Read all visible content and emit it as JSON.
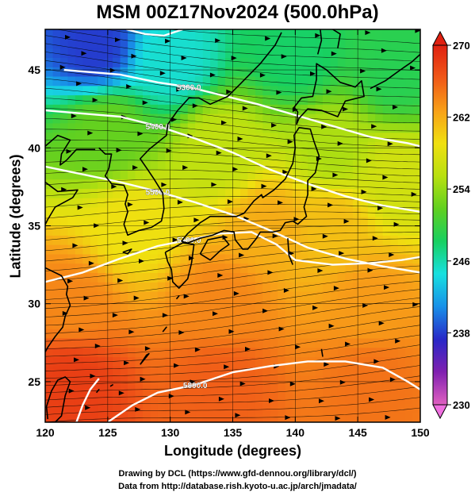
{
  "chart_data": {
    "type": "heatmap",
    "title": "MSM 00Z17Nov2024 (500.0hPa)",
    "xlabel": "Longitude (degrees)",
    "ylabel": "Latitude  (degrees)",
    "xlim": [
      120,
      150
    ],
    "ylim": [
      22.4,
      47.6
    ],
    "x_ticks": [
      "120",
      "125",
      "130",
      "135",
      "140",
      "145",
      "150"
    ],
    "y_ticks": [
      "25",
      "30",
      "35",
      "40",
      "45"
    ],
    "grid": true,
    "fill_variable": "temperature",
    "colorbar": {
      "min": 230,
      "max": 270,
      "ticks": [
        "230",
        "238",
        "246",
        "254",
        "262",
        "270"
      ],
      "colors": [
        "#e060c0",
        "#8020b0",
        "#2828c8",
        "#1890e8",
        "#18e0e0",
        "#18d060",
        "#60d020",
        "#b8e010",
        "#f0e010",
        "#f8a018",
        "#f05818",
        "#e02010"
      ]
    },
    "field_anchors": [
      {
        "lon": 124,
        "lat": 46.5,
        "value": 238
      },
      {
        "lon": 130,
        "lat": 45.5,
        "value": 245
      },
      {
        "lon": 140,
        "lat": 46,
        "value": 248
      },
      {
        "lon": 148,
        "lat": 45,
        "value": 249
      },
      {
        "lon": 125,
        "lat": 41,
        "value": 252
      },
      {
        "lon": 134,
        "lat": 40,
        "value": 256
      },
      {
        "lon": 143,
        "lat": 40,
        "value": 255
      },
      {
        "lon": 148,
        "lat": 38,
        "value": 257
      },
      {
        "lon": 127,
        "lat": 35,
        "value": 259
      },
      {
        "lon": 138,
        "lat": 35,
        "value": 262
      },
      {
        "lon": 143,
        "lat": 35,
        "value": 261
      },
      {
        "lon": 122,
        "lat": 30,
        "value": 264
      },
      {
        "lon": 134,
        "lat": 30,
        "value": 264
      },
      {
        "lon": 146,
        "lat": 30,
        "value": 263
      },
      {
        "lon": 122,
        "lat": 25,
        "value": 268
      },
      {
        "lon": 134,
        "lat": 25,
        "value": 266
      },
      {
        "lon": 146,
        "lat": 25,
        "value": 265
      }
    ],
    "contours": [
      {
        "label": "5300.0",
        "points": [
          [
            121.5,
            45
          ],
          [
            126,
            44.7
          ],
          [
            129,
            44.2
          ],
          [
            131.5,
            43.9
          ],
          [
            134,
            43.4
          ],
          [
            137,
            42.8
          ],
          [
            140,
            42.1
          ],
          [
            143,
            41.4
          ],
          [
            146,
            40.7
          ],
          [
            149,
            40.3
          ],
          [
            150,
            40.1
          ]
        ]
      },
      {
        "label": "5400.0",
        "points": [
          [
            120,
            42.4
          ],
          [
            123,
            42.2
          ],
          [
            126,
            42
          ],
          [
            129,
            41.4
          ],
          [
            132,
            40.6
          ],
          [
            135,
            39.7
          ],
          [
            138,
            38.6
          ],
          [
            141,
            37.7
          ],
          [
            144,
            36.9
          ],
          [
            147,
            36.3
          ],
          [
            150,
            35.9
          ]
        ]
      },
      {
        "label": "5500.0",
        "points": [
          [
            120,
            38.8
          ],
          [
            123,
            38.3
          ],
          [
            126,
            37.8
          ],
          [
            129,
            37.2
          ],
          [
            132,
            36.5
          ],
          [
            135,
            35.7
          ],
          [
            138,
            34.7
          ],
          [
            141,
            33.6
          ],
          [
            144,
            32.9
          ],
          [
            147,
            32.4
          ],
          [
            150,
            32
          ]
        ]
      },
      {
        "label": "5700.0",
        "points": [
          [
            120,
            31.4
          ],
          [
            123,
            32
          ],
          [
            126,
            32.9
          ],
          [
            129,
            33.7
          ],
          [
            131.5,
            34.1
          ],
          [
            134,
            34.5
          ],
          [
            136.5,
            34.6
          ],
          [
            138.5,
            33.8
          ],
          [
            140,
            32.8
          ],
          [
            143,
            32.5
          ],
          [
            146,
            32.6
          ],
          [
            148.5,
            32.8
          ],
          [
            150,
            33
          ]
        ]
      },
      {
        "label": "5800.0",
        "points": [
          [
            125,
            22.4
          ],
          [
            127,
            23.5
          ],
          [
            129,
            24.3
          ],
          [
            132,
            24.8
          ],
          [
            135,
            25.6
          ],
          [
            138,
            26
          ],
          [
            141,
            26.3
          ],
          [
            144,
            26.3
          ],
          [
            147,
            25.9
          ],
          [
            149,
            25
          ],
          [
            150,
            24.5
          ]
        ]
      },
      {
        "label": "",
        "points": [
          [
            122.5,
            22.4
          ],
          [
            123,
            23.5
          ],
          [
            123.6,
            24.5
          ],
          [
            124.3,
            25.2
          ]
        ]
      },
      {
        "label": "",
        "points": [
          [
            126.5,
            47.6
          ],
          [
            128,
            47.3
          ],
          [
            129.5,
            47.2
          ],
          [
            131,
            47.6
          ]
        ]
      }
    ]
  },
  "credits": {
    "line1": "Drawing by DCL (https://www.gfd-dennou.org/library/dcl/)",
    "line2": "Data from http://database.rish.kyoto-u.ac.jp/arch/jmadata/"
  }
}
